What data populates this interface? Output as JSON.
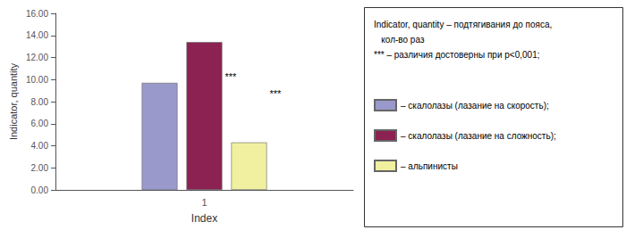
{
  "chart_data": {
    "type": "bar",
    "categories": [
      "1"
    ],
    "series": [
      {
        "name": "– скалолазы (лазание на скорость);",
        "color": "#9999cc",
        "values": [
          9.7
        ]
      },
      {
        "name": "– скалолазы (лазание на сложность);",
        "color": "#8b2252",
        "values": [
          13.4
        ]
      },
      {
        "name": "– альпинисты",
        "color": "#f0f0a0",
        "values": [
          4.3
        ]
      }
    ],
    "xlabel": "Index",
    "ylabel": "Indicator, quantity",
    "ylim": [
      0,
      16.0
    ],
    "yticks": [
      {
        "value": 0,
        "label": "0.00"
      },
      {
        "value": 2,
        "label": "2.00"
      },
      {
        "value": 4,
        "label": "4.00"
      },
      {
        "value": 6,
        "label": "6.00"
      },
      {
        "value": 8,
        "label": "8.00"
      },
      {
        "value": 10,
        "label": "10.00"
      },
      {
        "value": 12,
        "label": "12.00"
      },
      {
        "value": 14,
        "label": "14.00"
      },
      {
        "value": 16,
        "label": "16.00"
      }
    ],
    "annotations": [
      {
        "text": "***",
        "series": "– скалолазы (лазание на сложность);",
        "y": 10.3
      },
      {
        "text": "***",
        "series": "– альпинисты",
        "y": 8.7
      }
    ],
    "legend_title": [
      "Indicator, quantity – подтягивания до пояса,",
      "   кол-во раз",
      "*** – различия достоверны при p<0,001;"
    ],
    "grid": false
  }
}
